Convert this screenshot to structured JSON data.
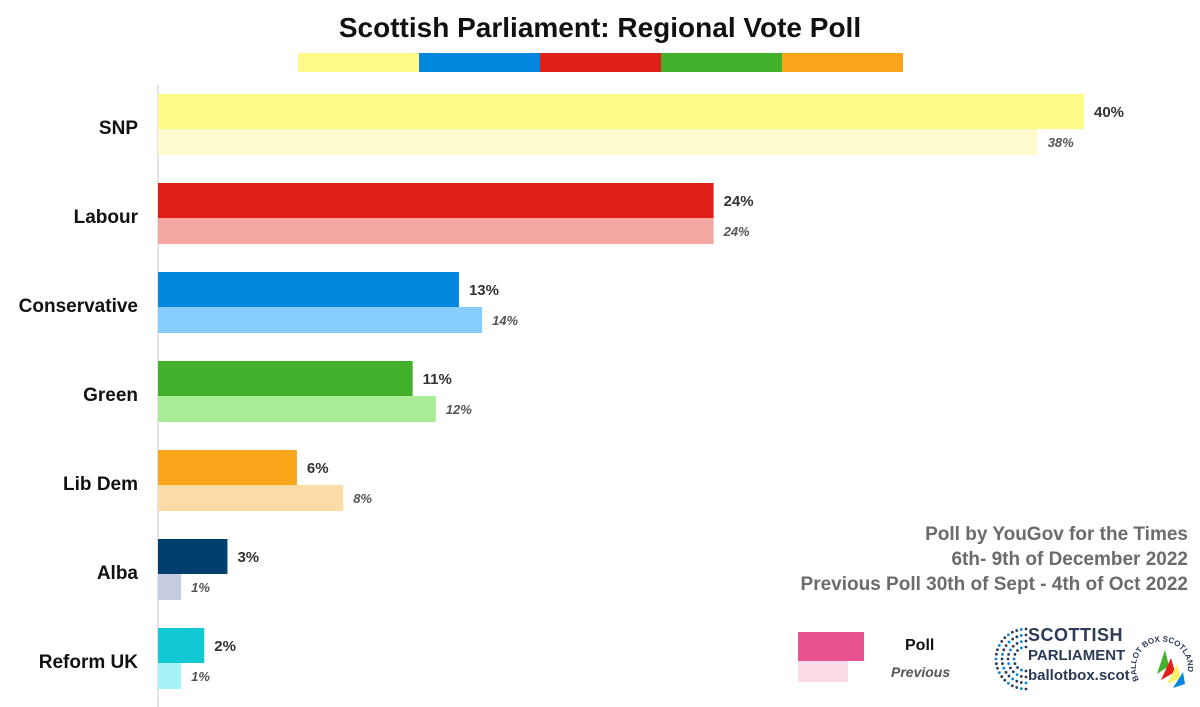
{
  "chart_data": {
    "type": "bar",
    "orientation": "horizontal",
    "title": "Scottish Parliament: Regional Vote Poll",
    "categories": [
      "SNP",
      "Labour",
      "Conservative",
      "Green",
      "Lib Dem",
      "Alba",
      "Reform UK"
    ],
    "series": [
      {
        "name": "Poll",
        "values": [
          40,
          24,
          13,
          11,
          6,
          3,
          2
        ]
      },
      {
        "name": "Previous",
        "values": [
          38,
          24,
          14,
          12,
          8,
          1,
          1
        ]
      }
    ],
    "value_labels": {
      "poll": [
        "40%",
        "24%",
        "13%",
        "11%",
        "6%",
        "3%",
        "2%"
      ],
      "previous": [
        "38%",
        "24%",
        "14%",
        "12%",
        "8%",
        "1%",
        "1%"
      ]
    },
    "colors": {
      "poll": [
        "#fff987",
        "#df2019",
        "#0387de",
        "#42b02a",
        "#faa61a",
        "#003f6e",
        "#12c8d2"
      ],
      "previous": [
        "#fffbd0",
        "#f4a7a2",
        "#86ceff",
        "#aaeb96",
        "#fcdca6",
        "#c5cbe0",
        "#a6f2f7"
      ]
    },
    "xlim": [
      0,
      40
    ],
    "grid": false,
    "legend_position": "bottom-right"
  },
  "title_stripe_colors": [
    "#fff987",
    "#0387de",
    "#df2019",
    "#42b02a",
    "#faa61a"
  ],
  "source": {
    "line1": "Poll by YouGov for the Times",
    "line2": "6th- 9th of December 2022",
    "line3": "Previous Poll 30th of Sept - 4th of Oct 2022"
  },
  "legend": {
    "poll_label": "Poll",
    "previous_label": "Previous",
    "poll_color": "#e8538f",
    "previous_color": "#fbdbe8"
  },
  "logo": {
    "line1": "SCOTTISH",
    "line2": "PARLIAMENT",
    "line3": "ballotbox.scot",
    "badge_text": "BALLOT BOX SCOTLAND",
    "icon": "parliament-hemicycle-icon"
  }
}
